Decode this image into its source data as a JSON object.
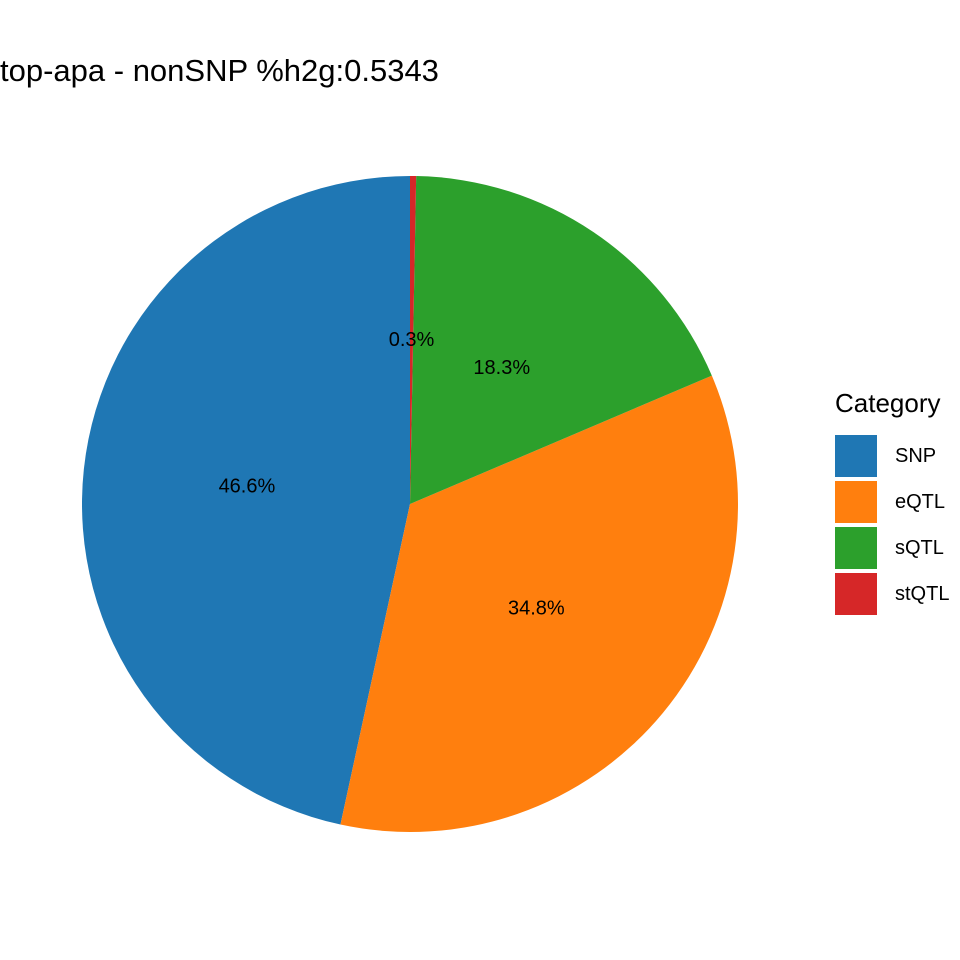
{
  "chart_data": {
    "type": "pie",
    "title": "top-apa - nonSNP %h2g:0.5343",
    "legend_title": "Category",
    "legend_position": "right",
    "slices": [
      {
        "name": "SNP",
        "value": 46.6,
        "label": "46.6%",
        "color": "#1f77b4"
      },
      {
        "name": "eQTL",
        "value": 34.8,
        "label": "34.8%",
        "color": "#ff7f0e"
      },
      {
        "name": "sQTL",
        "value": 18.3,
        "label": "18.3%",
        "color": "#2ca02c"
      },
      {
        "name": "stQTL",
        "value": 0.3,
        "label": "0.3%",
        "color": "#d62728"
      }
    ]
  }
}
